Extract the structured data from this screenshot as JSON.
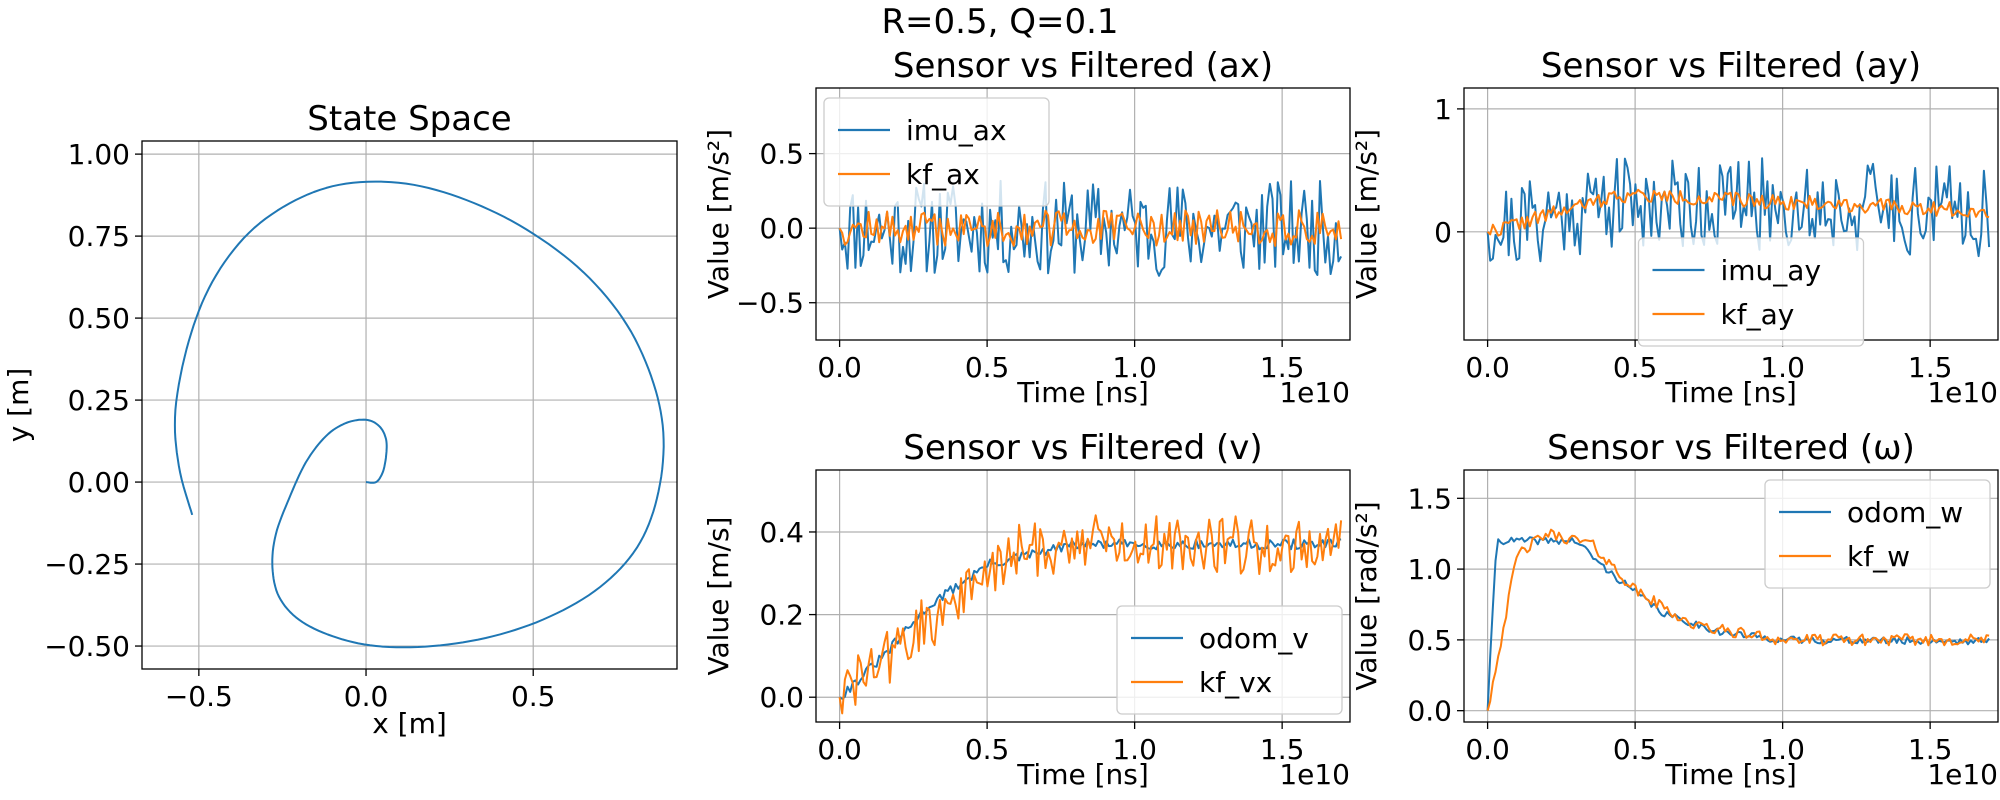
{
  "suptitle": "R=0.5, Q=0.1",
  "colors": {
    "blue": "#1f77b4",
    "orange": "#ff7f0e",
    "grid": "#b0b0b0"
  },
  "chart_data": [
    {
      "id": "state",
      "type": "line",
      "title": "State Space",
      "xlabel": "x [m]",
      "ylabel": "y [m]",
      "xlim": [
        -0.67,
        0.93
      ],
      "ylim": [
        -0.57,
        1.04
      ],
      "xticks": [
        -0.5,
        0.0,
        0.5
      ],
      "xtick_labels": [
        "−0.5",
        "0.0",
        "0.5"
      ],
      "yticks": [
        -0.5,
        -0.25,
        0.0,
        0.25,
        0.5,
        0.75,
        1.0
      ],
      "ytick_labels": [
        "−0.50",
        "−0.25",
        "0.00",
        "0.25",
        "0.50",
        "0.75",
        "1.00"
      ],
      "grid": true,
      "series": [
        {
          "color": "#1f77b4",
          "trajectory": {
            "x": [
              0.0,
              0.03,
              0.05,
              0.06,
              0.06,
              0.04,
              0.0,
              -0.06,
              -0.12,
              -0.18,
              -0.23,
              -0.27,
              -0.28,
              -0.26,
              -0.2,
              -0.1,
              0.03,
              0.2,
              0.38,
              0.55,
              0.7,
              0.81,
              0.87,
              0.89,
              0.86,
              0.78,
              0.65,
              0.48,
              0.3,
              0.12,
              -0.06,
              -0.21,
              -0.35,
              -0.46,
              -0.53,
              -0.57,
              -0.56,
              -0.52
            ],
            "y": [
              0.0,
              0.0,
              0.03,
              0.08,
              0.13,
              0.17,
              0.19,
              0.18,
              0.14,
              0.06,
              -0.05,
              -0.16,
              -0.26,
              -0.35,
              -0.42,
              -0.47,
              -0.5,
              -0.5,
              -0.47,
              -0.41,
              -0.32,
              -0.2,
              -0.05,
              0.13,
              0.3,
              0.48,
              0.64,
              0.77,
              0.86,
              0.91,
              0.91,
              0.86,
              0.76,
              0.61,
              0.43,
              0.22,
              0.05,
              -0.1
            ]
          }
        }
      ]
    },
    {
      "id": "ax",
      "type": "line",
      "title": "Sensor vs Filtered (ax)",
      "xlabel": "Time [ns]",
      "ylabel": "Value [m/s²]",
      "x_offset_label": "1e10",
      "xlim": [
        -0.08,
        1.73
      ],
      "ylim": [
        -0.75,
        0.94
      ],
      "xticks": [
        0.0,
        0.5,
        1.0,
        1.5
      ],
      "xtick_labels": [
        "0.0",
        "0.5",
        "1.0",
        "1.5"
      ],
      "yticks": [
        -0.5,
        0.0,
        0.5
      ],
      "ytick_labels": [
        "−0.5",
        "0.0",
        "0.5"
      ],
      "grid": true,
      "legend": "upper-left",
      "series": [
        {
          "name": "imu_ax",
          "color": "#1f77b4",
          "trend": [
            [
              0,
              0.0
            ],
            [
              1.7,
              0.0
            ]
          ],
          "noise": 0.32,
          "seed": 11
        },
        {
          "name": "kf_ax",
          "color": "#ff7f0e",
          "trend": [
            [
              0,
              0.0
            ],
            [
              1.7,
              0.0
            ]
          ],
          "noise": 0.12,
          "seed": 12
        }
      ]
    },
    {
      "id": "ay",
      "type": "line",
      "title": "Sensor vs Filtered (ay)",
      "xlabel": "Time [ns]",
      "ylabel": "Value [m/s²]",
      "x_offset_label": "1e10",
      "xlim": [
        -0.08,
        1.73
      ],
      "ylim": [
        -0.88,
        1.17
      ],
      "xticks": [
        0.0,
        0.5,
        1.0,
        1.5
      ],
      "xtick_labels": [
        "0.0",
        "0.5",
        "1.0",
        "1.5"
      ],
      "yticks": [
        0,
        1
      ],
      "ytick_labels": [
        "0",
        "1"
      ],
      "grid": true,
      "legend": "lower-center",
      "series": [
        {
          "name": "imu_ay",
          "color": "#1f77b4",
          "trend": [
            [
              0,
              0.0
            ],
            [
              0.4,
              0.25
            ],
            [
              1.7,
              0.18
            ]
          ],
          "noise": 0.38,
          "seed": 21
        },
        {
          "name": "kf_ay",
          "color": "#ff7f0e",
          "trend": [
            [
              0,
              0.0
            ],
            [
              0.45,
              0.3
            ],
            [
              1.7,
              0.17
            ]
          ],
          "noise": 0.06,
          "seed": 22
        }
      ]
    },
    {
      "id": "v",
      "type": "line",
      "title": "Sensor vs Filtered (v)",
      "xlabel": "Time [ns]",
      "ylabel": "Value [m/s]",
      "x_offset_label": "1e10",
      "xlim": [
        -0.08,
        1.73
      ],
      "ylim": [
        -0.06,
        0.55
      ],
      "xticks": [
        0.0,
        0.5,
        1.0,
        1.5
      ],
      "xtick_labels": [
        "0.0",
        "0.5",
        "1.0",
        "1.5"
      ],
      "yticks": [
        0.0,
        0.2,
        0.4
      ],
      "ytick_labels": [
        "0.0",
        "0.2",
        "0.4"
      ],
      "grid": true,
      "legend": "lower-right",
      "series": [
        {
          "name": "odom_v",
          "color": "#1f77b4",
          "trend": [
            [
              0,
              0.0
            ],
            [
              0.15,
              0.1
            ],
            [
              0.3,
              0.22
            ],
            [
              0.5,
              0.32
            ],
            [
              0.8,
              0.37
            ],
            [
              1.7,
              0.37
            ]
          ],
          "noise": 0.012,
          "seed": 31
        },
        {
          "name": "kf_vx",
          "color": "#ff7f0e",
          "trend": [
            [
              0,
              0.0
            ],
            [
              0.2,
              0.12
            ],
            [
              0.4,
              0.24
            ],
            [
              0.6,
              0.35
            ],
            [
              0.85,
              0.38
            ],
            [
              1.7,
              0.36
            ]
          ],
          "noise": 0.07,
          "seed": 32
        }
      ]
    },
    {
      "id": "w",
      "type": "line",
      "title": "Sensor vs Filtered (ω)",
      "xlabel": "Time [ns]",
      "ylabel": "Value [rad/s²]",
      "x_offset_label": "1e10",
      "xlim": [
        -0.08,
        1.73
      ],
      "ylim": [
        -0.08,
        1.7
      ],
      "xticks": [
        0.0,
        0.5,
        1.0,
        1.5
      ],
      "xtick_labels": [
        "0.0",
        "0.5",
        "1.0",
        "1.5"
      ],
      "yticks": [
        0.0,
        0.5,
        1.0,
        1.5
      ],
      "ytick_labels": [
        "0.0",
        "0.5",
        "1.0",
        "1.5"
      ],
      "grid": true,
      "legend": "upper-right",
      "series": [
        {
          "name": "odom_w",
          "color": "#1f77b4",
          "trend": [
            [
              0,
              0.0
            ],
            [
              0.03,
              1.2
            ],
            [
              0.3,
              1.2
            ],
            [
              0.4,
              1.0
            ],
            [
              0.6,
              0.68
            ],
            [
              0.8,
              0.55
            ],
            [
              1.0,
              0.5
            ],
            [
              1.7,
              0.49
            ]
          ],
          "noise": 0.025,
          "seed": 41
        },
        {
          "name": "kf_w",
          "color": "#ff7f0e",
          "trend": [
            [
              0,
              0.0
            ],
            [
              0.1,
              1.1
            ],
            [
              0.2,
              1.25
            ],
            [
              0.35,
              1.18
            ],
            [
              0.5,
              0.85
            ],
            [
              0.7,
              0.6
            ],
            [
              1.0,
              0.5
            ],
            [
              1.7,
              0.5
            ]
          ],
          "noise": 0.04,
          "seed": 42
        }
      ]
    }
  ]
}
